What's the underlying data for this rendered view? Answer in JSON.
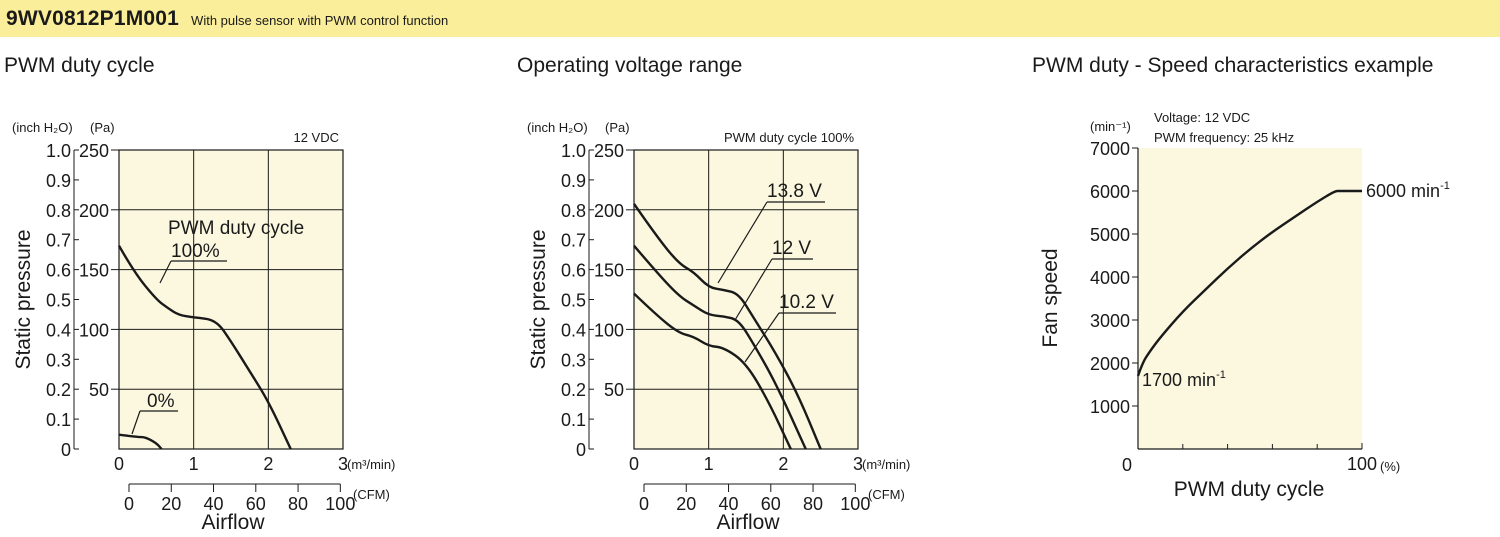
{
  "header": {
    "model": "9WV0812P1M001",
    "subtitle": "With pulse sensor with PWM control function"
  },
  "panels": {
    "p1_title": "PWM duty cycle",
    "p2_title": "Operating voltage range",
    "p3_title": "PWM duty - Speed characteristics example"
  },
  "chart_data": [
    {
      "type": "line",
      "title": "PWM duty cycle",
      "condition": "12 VDC",
      "xlabel": "Airflow",
      "ylabel": "Static pressure",
      "x_unit_primary": "(m³/min)",
      "x_unit_secondary": "(CFM)",
      "y_unit_primary": "(Pa)",
      "y_unit_secondary": "(inch H₂O)",
      "xlim": [
        0,
        3
      ],
      "ylim": [
        0,
        250
      ],
      "x_ticks": [
        "0",
        "1",
        "2",
        "3"
      ],
      "x2_ticks": [
        "0",
        "20",
        "40",
        "60",
        "80",
        "100"
      ],
      "y_ticks": [
        "50",
        "100",
        "150",
        "200",
        "250"
      ],
      "y2_ticks": [
        "0",
        "0.1",
        "0.2",
        "0.3",
        "0.4",
        "0.5",
        "0.6",
        "0.7",
        "0.8",
        "0.9",
        "1.0"
      ],
      "curve_label": "PWM duty cycle",
      "grid": true,
      "series": [
        {
          "name": "100%",
          "x": [
            0,
            0.2,
            0.5,
            0.65,
            0.8,
            1.0,
            1.3,
            1.5,
            1.75,
            2.0,
            2.3
          ],
          "y": [
            170,
            148,
            125,
            118,
            112,
            110,
            108,
            90,
            65,
            40,
            0
          ]
        },
        {
          "name": "0%",
          "x": [
            0,
            0.25,
            0.35,
            0.5,
            0.57
          ],
          "y": [
            12,
            10,
            10,
            5,
            0
          ]
        }
      ]
    },
    {
      "type": "line",
      "title": "Operating voltage range",
      "condition": "PWM duty cycle 100%",
      "xlabel": "Airflow",
      "ylabel": "Static pressure",
      "x_unit_primary": "(m³/min)",
      "x_unit_secondary": "(CFM)",
      "y_unit_primary": "(Pa)",
      "y_unit_secondary": "(inch H₂O)",
      "xlim": [
        0,
        3
      ],
      "ylim": [
        0,
        250
      ],
      "x_ticks": [
        "0",
        "1",
        "2",
        "3"
      ],
      "x2_ticks": [
        "0",
        "20",
        "40",
        "60",
        "80",
        "100"
      ],
      "y_ticks": [
        "50",
        "100",
        "150",
        "200",
        "250"
      ],
      "y2_ticks": [
        "0",
        "0.1",
        "0.2",
        "0.3",
        "0.4",
        "0.5",
        "0.6",
        "0.7",
        "0.8",
        "0.9",
        "1.0"
      ],
      "grid": true,
      "series": [
        {
          "name": "13.8 V",
          "x": [
            0,
            0.3,
            0.6,
            0.8,
            1.0,
            1.2,
            1.4,
            1.6,
            1.9,
            2.2,
            2.5
          ],
          "y": [
            205,
            178,
            155,
            148,
            135,
            133,
            130,
            110,
            80,
            45,
            0
          ]
        },
        {
          "name": "12 V",
          "x": [
            0,
            0.3,
            0.6,
            0.8,
            1.0,
            1.2,
            1.4,
            1.6,
            1.9,
            2.3
          ],
          "y": [
            170,
            148,
            128,
            120,
            112,
            111,
            108,
            88,
            55,
            0
          ]
        },
        {
          "name": "10.2 V",
          "x": [
            0,
            0.3,
            0.6,
            0.8,
            1.0,
            1.2,
            1.5,
            1.8,
            2.1
          ],
          "y": [
            130,
            112,
            97,
            94,
            86,
            85,
            72,
            40,
            0
          ]
        }
      ]
    },
    {
      "type": "line",
      "title": "PWM duty - Speed characteristics example",
      "condition_lines": [
        "Voltage: 12 VDC",
        "PWM frequency: 25 kHz"
      ],
      "xlabel": "PWM duty cycle",
      "ylabel": "Fan speed",
      "x_unit": "(%)",
      "y_unit": "(min⁻¹)",
      "xlim": [
        0,
        100
      ],
      "ylim": [
        0,
        7000
      ],
      "x_ticks": [
        "0",
        "100"
      ],
      "y_ticks": [
        "1000",
        "2000",
        "3000",
        "4000",
        "5000",
        "6000",
        "7000"
      ],
      "annotation_low": "1700 min",
      "annotation_high": "6000 min",
      "annotation_exponent": "-1",
      "grid": false,
      "series": [
        {
          "name": "speed",
          "x": [
            0,
            2,
            5,
            10,
            20,
            30,
            40,
            50,
            60,
            70,
            80,
            88,
            90,
            95,
            100
          ],
          "y": [
            1700,
            2000,
            2250,
            2600,
            3200,
            3700,
            4200,
            4650,
            5050,
            5400,
            5750,
            6000,
            6000,
            6000,
            6000
          ]
        }
      ]
    }
  ]
}
